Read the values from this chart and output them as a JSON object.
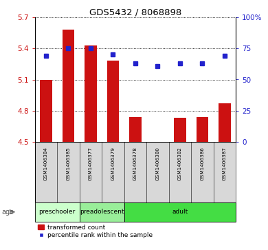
{
  "title": "GDS5432 / 8068898",
  "samples": [
    "GSM1406384",
    "GSM1406385",
    "GSM1406377",
    "GSM1406379",
    "GSM1406378",
    "GSM1406380",
    "GSM1406382",
    "GSM1406386",
    "GSM1406387"
  ],
  "transformed_count": [
    5.1,
    5.58,
    5.43,
    5.28,
    4.74,
    4.5,
    4.73,
    4.74,
    4.87
  ],
  "percentile_rank": [
    69,
    75,
    75,
    70,
    63,
    61,
    63,
    63,
    69
  ],
  "ylim_left": [
    4.5,
    5.7
  ],
  "ylim_right": [
    0,
    100
  ],
  "yticks_left": [
    4.5,
    4.8,
    5.1,
    5.4,
    5.7
  ],
  "yticks_right": [
    0,
    25,
    50,
    75,
    100
  ],
  "bar_color": "#cc1111",
  "dot_color": "#2222cc",
  "groups": [
    {
      "label": "preschooler",
      "start": 0,
      "end": 2,
      "color": "#ccffcc"
    },
    {
      "label": "preadolescent",
      "start": 2,
      "end": 4,
      "color": "#99ee99"
    },
    {
      "label": "adult",
      "start": 4,
      "end": 9,
      "color": "#44dd44"
    }
  ],
  "age_label": "age",
  "legend_bar_label": "transformed count",
  "legend_dot_label": "percentile rank within the sample",
  "background_color": "#ffffff",
  "bar_bottom": 4.5,
  "sample_box_color": "#d8d8d8",
  "sample_box_edge": "#555555"
}
